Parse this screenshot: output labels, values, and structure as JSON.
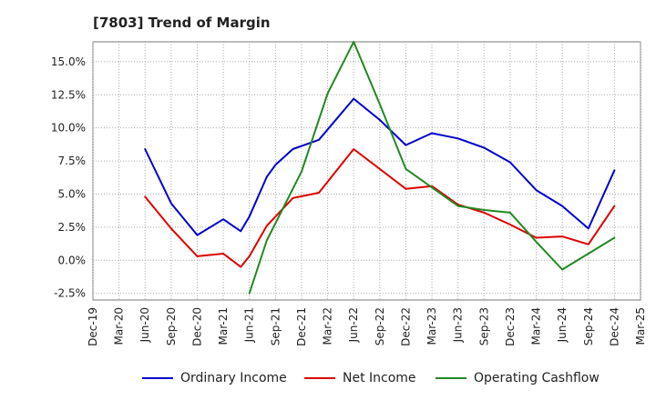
{
  "chart_data": {
    "type": "line",
    "title": "[7803]  Trend of Margin",
    "xlabel": "",
    "ylabel": "",
    "x_ticks": [
      "Dec-19",
      "Mar-20",
      "Jun-20",
      "Sep-20",
      "Dec-20",
      "Mar-21",
      "Jun-21",
      "Sep-21",
      "Dec-21",
      "Mar-22",
      "Jun-22",
      "Sep-22",
      "Dec-22",
      "Mar-23",
      "Jun-23",
      "Sep-23",
      "Dec-23",
      "Mar-24",
      "Jun-24",
      "Sep-24",
      "Dec-24",
      "Mar-25"
    ],
    "y_ticks": [
      -2.5,
      0.0,
      2.5,
      5.0,
      7.5,
      10.0,
      12.5,
      15.0
    ],
    "y_tick_labels": [
      "-2.5%",
      "0.0%",
      "2.5%",
      "5.0%",
      "7.5%",
      "10.0%",
      "12.5%",
      "15.0%"
    ],
    "ylim": [
      -3.0,
      16.5
    ],
    "xlim": [
      "Dec-19",
      "Mar-25"
    ],
    "grid": true,
    "legend_position": "bottom",
    "series": [
      {
        "name": "Ordinary Income",
        "color": "#0000cc",
        "points": [
          {
            "x": "Jun-20",
            "y": 8.4
          },
          {
            "x": "Sep-20",
            "y": 4.3
          },
          {
            "x": "Dec-20",
            "y": 1.9
          },
          {
            "x": "Mar-21",
            "y": 3.1
          },
          {
            "x": "May-21",
            "y": 2.2
          },
          {
            "x": "Jun-21",
            "y": 3.3
          },
          {
            "x": "Aug-21",
            "y": 6.3
          },
          {
            "x": "Sep-21",
            "y": 7.2
          },
          {
            "x": "Nov-21",
            "y": 8.4
          },
          {
            "x": "Feb-22",
            "y": 9.1
          },
          {
            "x": "Jun-22",
            "y": 12.2
          },
          {
            "x": "Sep-22",
            "y": 10.6
          },
          {
            "x": "Dec-22",
            "y": 8.7
          },
          {
            "x": "Mar-23",
            "y": 9.6
          },
          {
            "x": "Jun-23",
            "y": 9.2
          },
          {
            "x": "Sep-23",
            "y": 8.5
          },
          {
            "x": "Dec-23",
            "y": 7.4
          },
          {
            "x": "Mar-24",
            "y": 5.3
          },
          {
            "x": "Jun-24",
            "y": 4.1
          },
          {
            "x": "Sep-24",
            "y": 2.4
          },
          {
            "x": "Dec-24",
            "y": 6.8
          }
        ]
      },
      {
        "name": "Net Income",
        "color": "#dd0000",
        "points": [
          {
            "x": "Jun-20",
            "y": 4.8
          },
          {
            "x": "Sep-20",
            "y": 2.4
          },
          {
            "x": "Dec-20",
            "y": 0.3
          },
          {
            "x": "Mar-21",
            "y": 0.5
          },
          {
            "x": "May-21",
            "y": -0.5
          },
          {
            "x": "Jun-21",
            "y": 0.3
          },
          {
            "x": "Aug-21",
            "y": 2.6
          },
          {
            "x": "Nov-21",
            "y": 4.7
          },
          {
            "x": "Feb-22",
            "y": 5.1
          },
          {
            "x": "Jun-22",
            "y": 8.4
          },
          {
            "x": "Dec-22",
            "y": 5.4
          },
          {
            "x": "Mar-23",
            "y": 5.6
          },
          {
            "x": "Jun-23",
            "y": 4.2
          },
          {
            "x": "Sep-23",
            "y": 3.6
          },
          {
            "x": "Dec-23",
            "y": 2.7
          },
          {
            "x": "Mar-24",
            "y": 1.7
          },
          {
            "x": "Jun-24",
            "y": 1.8
          },
          {
            "x": "Sep-24",
            "y": 1.2
          },
          {
            "x": "Dec-24",
            "y": 4.1
          }
        ]
      },
      {
        "name": "Operating Cashflow",
        "color": "#228822",
        "points": [
          {
            "x": "Jun-21",
            "y": -2.5
          },
          {
            "x": "Aug-21",
            "y": 1.5
          },
          {
            "x": "Dec-21",
            "y": 6.7
          },
          {
            "x": "Mar-22",
            "y": 12.6
          },
          {
            "x": "Jun-22",
            "y": 16.5
          },
          {
            "x": "Sep-22",
            "y": 11.8
          },
          {
            "x": "Dec-22",
            "y": 6.9
          },
          {
            "x": "Mar-23",
            "y": 5.5
          },
          {
            "x": "Jun-23",
            "y": 4.1
          },
          {
            "x": "Sep-23",
            "y": 3.8
          },
          {
            "x": "Dec-23",
            "y": 3.6
          },
          {
            "x": "Mar-24",
            "y": 1.4
          },
          {
            "x": "Jun-24",
            "y": -0.7
          },
          {
            "x": "Sep-24",
            "y": 0.5
          },
          {
            "x": "Dec-24",
            "y": 1.7
          }
        ]
      }
    ]
  }
}
